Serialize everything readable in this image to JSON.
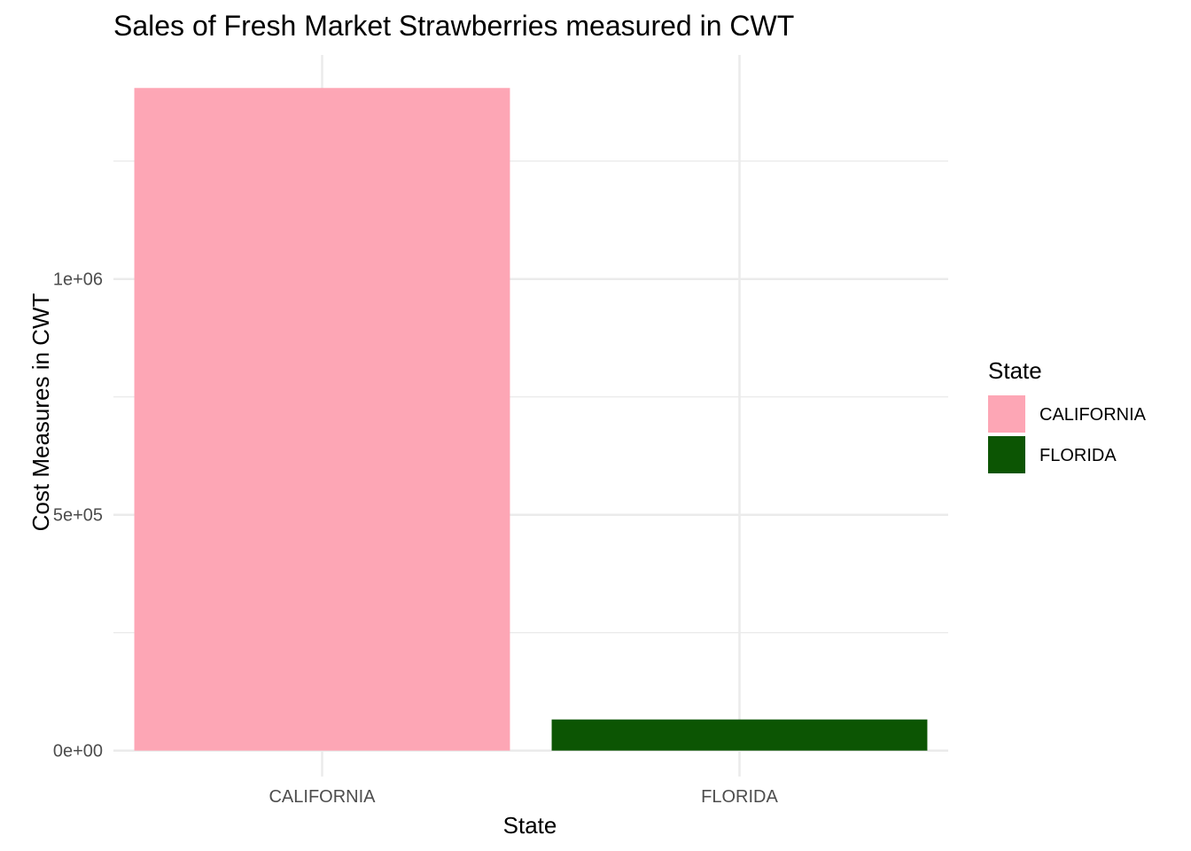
{
  "chart_data": {
    "type": "bar",
    "title": "Sales of Fresh Market Strawberries measured in CWT",
    "xlabel": "State",
    "ylabel": "Cost Measures in CWT",
    "categories": [
      "CALIFORNIA",
      "FLORIDA"
    ],
    "values": [
      1405000,
      66000
    ],
    "colors": [
      "#fda6b5",
      "#0c5503"
    ],
    "ylim": [
      -55000,
      1475000
    ],
    "y_ticks": [
      0,
      500000,
      1000000
    ],
    "y_tick_labels": [
      "0e+00",
      "5e+05",
      "1e+06"
    ],
    "y_minor_ticks": [
      250000,
      750000,
      1250000
    ],
    "grid": true,
    "legend": {
      "title": "State",
      "position": "right",
      "entries": [
        "CALIFORNIA",
        "FLORIDA"
      ]
    }
  }
}
